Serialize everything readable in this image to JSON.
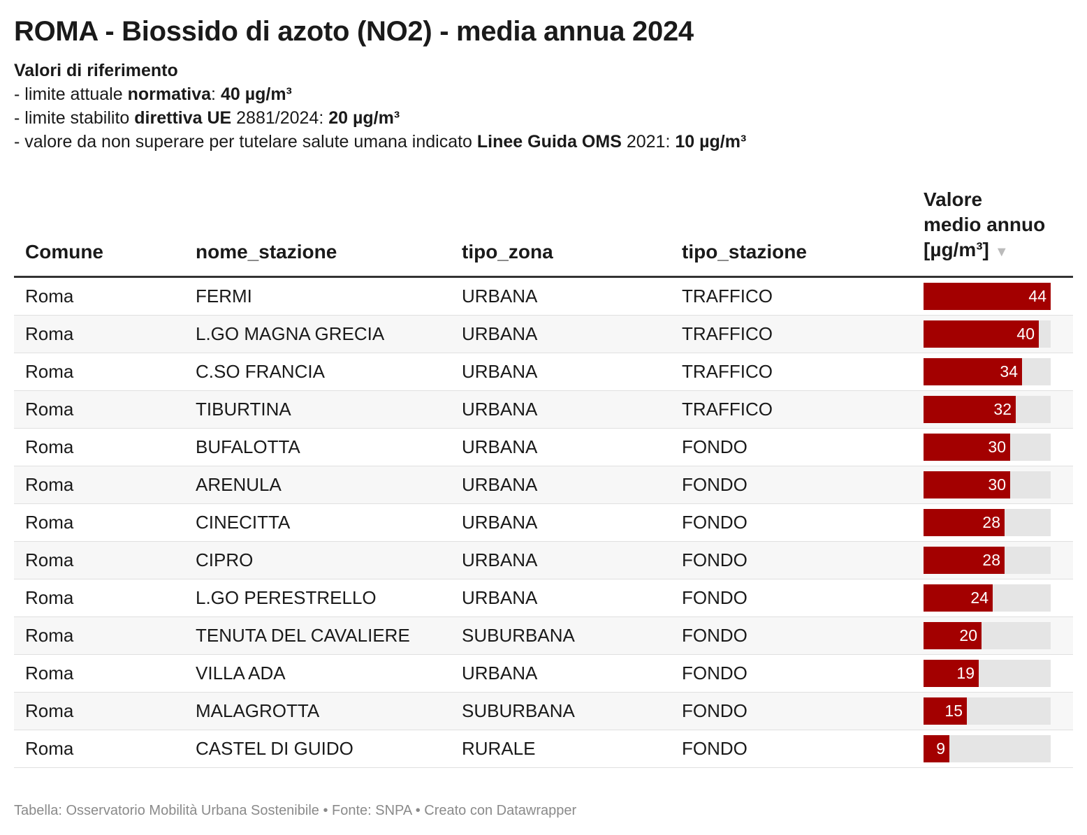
{
  "title": "ROMA - Biossido di azoto (NO2) - media annua 2024",
  "description": {
    "heading": "Valori di riferimento",
    "lines": [
      {
        "a": "- limite attuale ",
        "b": "normativa",
        "c": ": ",
        "d": "40 µg/m³",
        "e": ""
      },
      {
        "a": "- limite stabilito ",
        "b": "direttiva UE",
        "c": " 2881/2024: ",
        "d": "20 µg/m³",
        "e": ""
      },
      {
        "a": "- valore da non superare per tutelare salute umana indicato ",
        "b": "Linee Guida OMS",
        "c": " 2021: ",
        "d": "10 µg/m³",
        "e": ""
      }
    ]
  },
  "columns": {
    "comune": "Comune",
    "nome_stazione": "nome_stazione",
    "tipo_zona": "tipo_zona",
    "tipo_stazione": "tipo_stazione",
    "valore_line1": "Valore",
    "valore_line2": "medio annuo",
    "valore_line3": "[µg/m³]",
    "sort_icon": "sort-down-icon"
  },
  "footer": "Tabella: Osservatorio Mobilità Urbana Sostenibile • Fonte: SNPA • Creato con Datawrapper",
  "colors": {
    "bar": "#a30000",
    "track": "#e5e5e5"
  },
  "chart_data": {
    "type": "table",
    "title": "ROMA - Biossido di azoto (NO2) - media annua 2024",
    "columns": [
      "Comune",
      "nome_stazione",
      "tipo_zona",
      "tipo_stazione",
      "Valore medio annuo [µg/m³]"
    ],
    "bar_max": 44,
    "rows": [
      {
        "comune": "Roma",
        "nome_stazione": "FERMI",
        "tipo_zona": "URBANA",
        "tipo_stazione": "TRAFFICO",
        "valore": 44
      },
      {
        "comune": "Roma",
        "nome_stazione": "L.GO MAGNA GRECIA",
        "tipo_zona": "URBANA",
        "tipo_stazione": "TRAFFICO",
        "valore": 40
      },
      {
        "comune": "Roma",
        "nome_stazione": "C.SO FRANCIA",
        "tipo_zona": "URBANA",
        "tipo_stazione": "TRAFFICO",
        "valore": 34
      },
      {
        "comune": "Roma",
        "nome_stazione": "TIBURTINA",
        "tipo_zona": "URBANA",
        "tipo_stazione": "TRAFFICO",
        "valore": 32
      },
      {
        "comune": "Roma",
        "nome_stazione": "BUFALOTTA",
        "tipo_zona": "URBANA",
        "tipo_stazione": "FONDO",
        "valore": 30
      },
      {
        "comune": "Roma",
        "nome_stazione": "ARENULA",
        "tipo_zona": "URBANA",
        "tipo_stazione": "FONDO",
        "valore": 30
      },
      {
        "comune": "Roma",
        "nome_stazione": "CINECITTA",
        "tipo_zona": "URBANA",
        "tipo_stazione": "FONDO",
        "valore": 28
      },
      {
        "comune": "Roma",
        "nome_stazione": "CIPRO",
        "tipo_zona": "URBANA",
        "tipo_stazione": "FONDO",
        "valore": 28
      },
      {
        "comune": "Roma",
        "nome_stazione": "L.GO PERESTRELLO",
        "tipo_zona": "URBANA",
        "tipo_stazione": "FONDO",
        "valore": 24
      },
      {
        "comune": "Roma",
        "nome_stazione": "TENUTA DEL CAVALIERE",
        "tipo_zona": "SUBURBANA",
        "tipo_stazione": "FONDO",
        "valore": 20
      },
      {
        "comune": "Roma",
        "nome_stazione": "VILLA ADA",
        "tipo_zona": "URBANA",
        "tipo_stazione": "FONDO",
        "valore": 19
      },
      {
        "comune": "Roma",
        "nome_stazione": "MALAGROTTA",
        "tipo_zona": "SUBURBANA",
        "tipo_stazione": "FONDO",
        "valore": 15
      },
      {
        "comune": "Roma",
        "nome_stazione": "CASTEL DI GUIDO",
        "tipo_zona": "RURALE",
        "tipo_stazione": "FONDO",
        "valore": 9
      }
    ]
  }
}
